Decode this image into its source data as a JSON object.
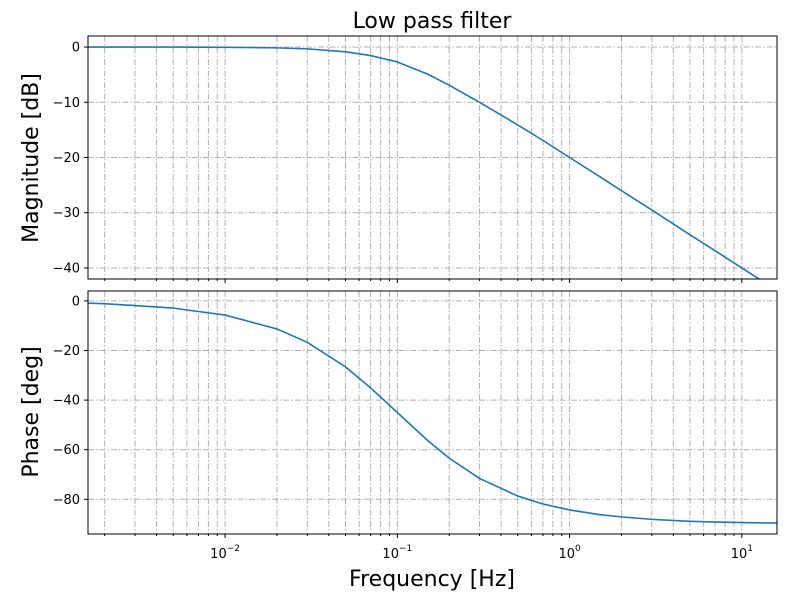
{
  "chart_data": [
    {
      "type": "line",
      "title": "Low pass filter",
      "xlabel": "",
      "ylabel": "Magnitude [dB]",
      "x_scale": "log",
      "xlim": [
        0.0016,
        16
      ],
      "ylim": [
        -42,
        2
      ],
      "grid": "both-major-and-minor",
      "xticks": [
        0.01,
        0.1,
        1,
        10
      ],
      "xtick_labels_visible": false,
      "yticks": [
        0,
        -10,
        -20,
        -30,
        -40
      ],
      "ytick_labels": [
        "0",
        "−10",
        "−20",
        "−30",
        "−40"
      ],
      "series": [
        {
          "color": "#1f77b4",
          "x": [
            0.0016,
            0.002,
            0.005,
            0.01,
            0.02,
            0.03,
            0.05,
            0.07,
            0.1,
            0.15,
            0.2,
            0.3,
            0.5,
            0.7,
            1,
            1.5,
            2,
            3,
            5,
            7,
            10,
            16
          ],
          "y": [
            0,
            0,
            -0.01,
            -0.04,
            -0.15,
            -0.33,
            -0.86,
            -1.54,
            -2.7,
            -4.9,
            -6.9,
            -10.0,
            -14.1,
            -16.9,
            -20.0,
            -23.5,
            -26.0,
            -29.5,
            -34.0,
            -36.9,
            -40.0,
            -44.1
          ]
        }
      ]
    },
    {
      "type": "line",
      "title": "",
      "xlabel": "Frequency [Hz]",
      "ylabel": "Phase [deg]",
      "x_scale": "log",
      "xlim": [
        0.0016,
        16
      ],
      "ylim": [
        -94,
        4
      ],
      "grid": "both-major-and-minor",
      "xticks": [
        0.01,
        0.1,
        1,
        10
      ],
      "xtick_labels": [
        "10",
        "10",
        "10",
        "10"
      ],
      "xtick_exponents": [
        "−2",
        "−1",
        "0",
        "1"
      ],
      "yticks": [
        0,
        -20,
        -40,
        -60,
        -80
      ],
      "ytick_labels": [
        "0",
        "−20",
        "−40",
        "−60",
        "−80"
      ],
      "series": [
        {
          "color": "#1f77b4",
          "x": [
            0.0016,
            0.002,
            0.005,
            0.01,
            0.02,
            0.03,
            0.05,
            0.07,
            0.1,
            0.15,
            0.2,
            0.3,
            0.5,
            0.7,
            1,
            1.5,
            2,
            3,
            5,
            7,
            10,
            16
          ],
          "y": [
            -0.9,
            -1.1,
            -2.9,
            -5.7,
            -11.3,
            -16.7,
            -26.6,
            -35.1,
            -45.0,
            -56.3,
            -63.4,
            -71.6,
            -78.7,
            -81.9,
            -84.3,
            -86.2,
            -87.1,
            -88.1,
            -88.9,
            -89.2,
            -89.4,
            -89.6
          ]
        }
      ]
    }
  ]
}
